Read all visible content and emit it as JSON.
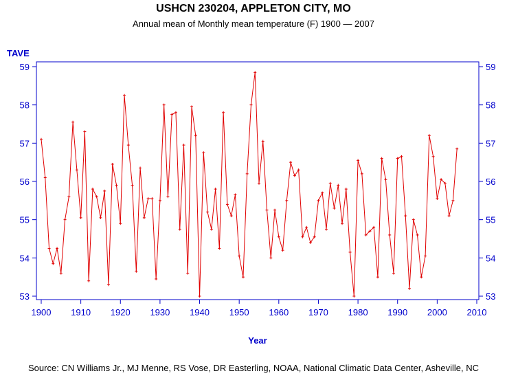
{
  "chart_data": {
    "type": "line",
    "title": "USHCN 230204, APPLETON CITY, MO",
    "subtitle": "Annual mean of Monthly mean temperature (F) 1900 — 2007",
    "ylabel": "TAVE",
    "xlabel": "Year",
    "source": "Source: CN Williams Jr., MJ Menne, RS Vose, DR Easterling, NOAA, National Climatic Data Center, Asheville, NC",
    "xlim": [
      1900,
      2010
    ],
    "ylim": [
      53,
      59
    ],
    "x_ticks": [
      1900,
      1910,
      1920,
      1930,
      1940,
      1950,
      1960,
      1970,
      1980,
      1990,
      2000,
      2010
    ],
    "y_ticks": [
      53,
      54,
      55,
      56,
      57,
      58,
      59
    ],
    "line_color": "#e00000",
    "axis_color": "#0000cc",
    "series": [
      {
        "name": "TAVE",
        "x": [
          1900,
          1901,
          1902,
          1903,
          1904,
          1905,
          1906,
          1907,
          1908,
          1909,
          1910,
          1911,
          1912,
          1913,
          1914,
          1915,
          1916,
          1917,
          1918,
          1919,
          1920,
          1921,
          1922,
          1923,
          1924,
          1925,
          1926,
          1927,
          1928,
          1929,
          1930,
          1931,
          1932,
          1933,
          1934,
          1935,
          1936,
          1937,
          1938,
          1939,
          1940,
          1941,
          1942,
          1943,
          1944,
          1945,
          1946,
          1947,
          1948,
          1949,
          1950,
          1951,
          1952,
          1953,
          1954,
          1955,
          1956,
          1957,
          1958,
          1959,
          1960,
          1961,
          1962,
          1963,
          1964,
          1965,
          1966,
          1967,
          1968,
          1969,
          1970,
          1971,
          1972,
          1973,
          1974,
          1975,
          1976,
          1977,
          1978,
          1979,
          1980,
          1981,
          1982,
          1983,
          1984,
          1985,
          1986,
          1987,
          1988,
          1989,
          1990,
          1991,
          1992,
          1993,
          1994,
          1995,
          1996,
          1997,
          1998,
          1999,
          2000,
          2001,
          2002,
          2003,
          2004,
          2005
        ],
        "values": [
          57.1,
          56.1,
          54.25,
          53.85,
          54.25,
          53.6,
          55.0,
          55.6,
          57.55,
          56.3,
          55.05,
          57.3,
          53.4,
          55.8,
          55.6,
          55.05,
          55.75,
          53.3,
          56.45,
          55.9,
          54.9,
          58.25,
          56.95,
          55.9,
          53.65,
          56.35,
          55.05,
          55.55,
          55.55,
          53.45,
          55.5,
          58.0,
          55.6,
          57.75,
          57.8,
          54.75,
          56.95,
          53.6,
          57.95,
          57.2,
          53.0,
          56.75,
          55.2,
          54.75,
          55.8,
          54.25,
          57.8,
          55.4,
          55.1,
          55.65,
          54.05,
          53.5,
          56.2,
          58.0,
          58.85,
          55.95,
          57.05,
          55.25,
          54.0,
          55.25,
          54.55,
          54.2,
          55.5,
          56.5,
          56.15,
          56.3,
          54.55,
          54.8,
          54.4,
          54.55,
          55.5,
          55.7,
          54.75,
          55.95,
          55.3,
          55.9,
          54.9,
          55.8,
          54.15,
          53.0,
          56.55,
          56.2,
          54.6,
          54.7,
          54.8,
          53.5,
          56.6,
          56.05,
          54.6,
          53.6,
          56.6,
          56.65,
          55.1,
          53.2,
          55.0,
          54.6,
          53.5,
          54.05,
          57.2,
          56.65,
          55.55,
          56.05,
          55.95,
          55.1,
          55.5,
          56.85
        ]
      }
    ]
  }
}
